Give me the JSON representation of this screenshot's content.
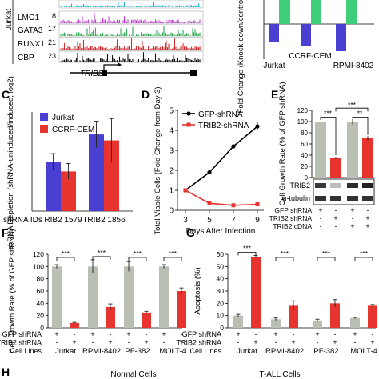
{
  "colors": {
    "purple": "#4a3fd0",
    "red": "#e8342e",
    "green": "#3fcf7a",
    "grey": "#b9bfb2",
    "track_lmo1": "#c040d0",
    "track_gata3": "#33aa55",
    "track_runx1": "#d03030",
    "track_cbp": "#111111",
    "track_top": "#30b0d0"
  },
  "panelA": {
    "left_label": "Jurkat",
    "tracks": [
      {
        "name": "",
        "scale": "",
        "color": "#30b0d0"
      },
      {
        "name": "LMO1",
        "scale": "8",
        "color": "#c040d0"
      },
      {
        "name": "GATA3",
        "scale": "17",
        "color": "#33aa55"
      },
      {
        "name": "RUNX1",
        "scale": "21",
        "color": "#d03030"
      },
      {
        "name": "CBP",
        "scale": "23",
        "color": "#111111"
      }
    ],
    "gene_label": "TRIB2"
  },
  "panelB": {
    "ylabel": "Fold Change (Knock-down/control)",
    "categories": [
      "Jurkat",
      "CCRF-CEM",
      "RPMI-8402"
    ]
  },
  "panel_letters": {
    "C": "C",
    "D": "D",
    "E": "E",
    "F": "F",
    "G": "G",
    "H": "H"
  },
  "chart_data": [
    {
      "panel": "C",
      "type": "bar",
      "ylabel": "shRNA Depletion (shRNA-uninduced/induced, log2)",
      "xlabel": "shRNA IDs",
      "categories": [
        "TRIB2 1579",
        "TRIB2 1856"
      ],
      "ylim": [
        0,
        1.5
      ],
      "series": [
        {
          "name": "Jurkat",
          "values": [
            0.74,
            1.16
          ],
          "errors": [
            0.13,
            0.2
          ]
        },
        {
          "name": "CCRF-CEM",
          "values": [
            0.6,
            1.07
          ],
          "errors": [
            0.12,
            0.33
          ]
        }
      ],
      "legend": "top-left"
    },
    {
      "panel": "D",
      "type": "line",
      "ylabel": "Total Viable Cells (Fold Change from Day 3)",
      "xlabel": "Days After Infection",
      "x": [
        3,
        5,
        7,
        9
      ],
      "ylim": [
        0,
        5
      ],
      "yticks": [
        0,
        1,
        2,
        3,
        4,
        5
      ],
      "series": [
        {
          "name": "GFP-shRNA",
          "values": [
            1,
            1.9,
            3.2,
            4.2
          ]
        },
        {
          "name": "TRIB2-shRNA",
          "values": [
            1,
            0.35,
            0.25,
            0.3
          ]
        }
      ],
      "legend": "top-left"
    },
    {
      "panel": "E",
      "type": "bar",
      "ylabel": "Cell Growth Rate (% of GFP shRNA)",
      "ylim": [
        0,
        120
      ],
      "yticks": [
        0,
        20,
        40,
        60,
        80,
        100,
        120
      ],
      "values": [
        100,
        35,
        100,
        70
      ],
      "errors": [
        0,
        2,
        5,
        4
      ],
      "colors": [
        "grey",
        "red",
        "grey",
        "red"
      ],
      "significance": [
        "***",
        "***",
        "**"
      ],
      "blot_labels": [
        "TRIB2",
        "α-tubulin"
      ],
      "row_labels": [
        "GFP shRNA",
        "TRIB2 shRNA",
        "TRIB2 cDNA"
      ],
      "row_marks": [
        [
          "+",
          "-",
          "+",
          "-"
        ],
        [
          "-",
          "+",
          "-",
          "+"
        ],
        [
          "-",
          "-",
          "+",
          "+"
        ]
      ]
    },
    {
      "panel": "F",
      "type": "bar",
      "ylabel": "Cell Growth Rate (% of GFP shRNA)",
      "ylim": [
        0,
        120
      ],
      "yticks": [
        0,
        20,
        40,
        60,
        80,
        100,
        120
      ],
      "categories": [
        "Jurkat",
        "RPMI-8402",
        "PF-382",
        "MOLT-4"
      ],
      "series": [
        {
          "name": "GFP shRNA",
          "values": [
            100,
            100,
            100,
            100
          ],
          "errors": [
            3,
            11,
            8,
            3
          ]
        },
        {
          "name": "TRIB2 shRNA",
          "values": [
            8,
            34,
            25,
            60
          ],
          "errors": [
            1,
            5,
            2,
            5
          ]
        }
      ],
      "significance": "***",
      "row_labels": [
        "GFP shRNA",
        "TRIB2 shRNA",
        "Cell Lines"
      ]
    },
    {
      "panel": "G",
      "type": "bar",
      "ylabel": "Apoptosis (%)",
      "ylim": [
        0,
        60
      ],
      "yticks": [
        0,
        10,
        20,
        30,
        40,
        50,
        60
      ],
      "categories": [
        "Jurkat",
        "RPMI-8402",
        "PF-382",
        "MOLT-4"
      ],
      "series": [
        {
          "name": "GFP shRNA",
          "values": [
            10,
            7,
            6,
            8
          ],
          "errors": [
            1,
            1,
            1,
            0.5
          ]
        },
        {
          "name": "TRIB2 shRNA",
          "values": [
            58,
            18,
            20,
            18
          ],
          "errors": [
            1,
            4,
            3,
            1
          ]
        }
      ],
      "significance": "***",
      "row_labels": [
        "GFP shRNA",
        "TRIB2 shRNA",
        "Cell Lines"
      ]
    }
  ],
  "panelH": {
    "left": "Normal Cells",
    "right": "T-ALL Cells"
  },
  "pm": {
    "plus": "+",
    "minus": "-"
  }
}
